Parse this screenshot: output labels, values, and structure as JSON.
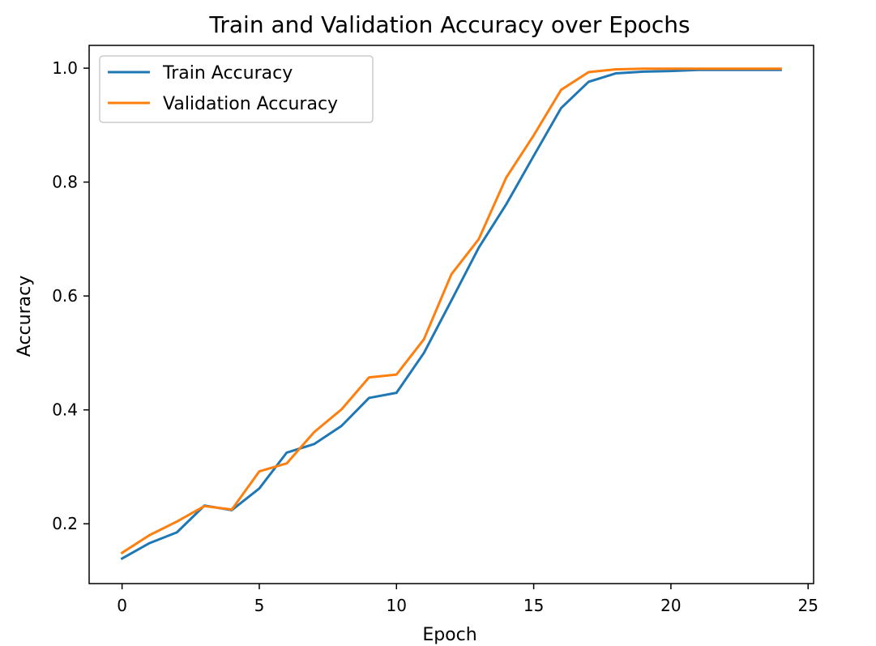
{
  "chart_data": {
    "type": "line",
    "title": "Train and Validation Accuracy over Epochs",
    "xlabel": "Epoch",
    "ylabel": "Accuracy",
    "xlim": [
      -1.2,
      25.2
    ],
    "ylim": [
      0.095,
      1.04
    ],
    "xticks": [
      0,
      5,
      10,
      15,
      20,
      25
    ],
    "xtick_labels": [
      "0",
      "5",
      "10",
      "15",
      "20",
      "25"
    ],
    "yticks": [
      0.2,
      0.4,
      0.6,
      0.8,
      1.0
    ],
    "ytick_labels": [
      "0.2",
      "0.4",
      "0.6",
      "0.8",
      "1.0"
    ],
    "grid": false,
    "legend_position": "upper-left",
    "x": [
      0,
      1,
      2,
      3,
      4,
      5,
      6,
      7,
      8,
      9,
      10,
      11,
      12,
      13,
      14,
      15,
      16,
      17,
      18,
      19,
      20,
      21,
      22,
      23,
      24
    ],
    "series": [
      {
        "name": "Train Accuracy",
        "color": "#1f77b4",
        "values": [
          0.139,
          0.166,
          0.185,
          0.232,
          0.224,
          0.262,
          0.325,
          0.34,
          0.372,
          0.421,
          0.43,
          0.5,
          0.592,
          0.685,
          0.761,
          0.846,
          0.93,
          0.976,
          0.991,
          0.994,
          0.995,
          0.997,
          0.997,
          0.997,
          0.997
        ]
      },
      {
        "name": "Validation Accuracy",
        "color": "#ff7f0e",
        "values": [
          0.149,
          0.18,
          0.204,
          0.231,
          0.225,
          0.292,
          0.306,
          0.361,
          0.401,
          0.457,
          0.462,
          0.524,
          0.638,
          0.7,
          0.808,
          0.882,
          0.962,
          0.993,
          0.998,
          0.999,
          0.999,
          0.999,
          0.999,
          0.999,
          0.999
        ]
      }
    ]
  }
}
